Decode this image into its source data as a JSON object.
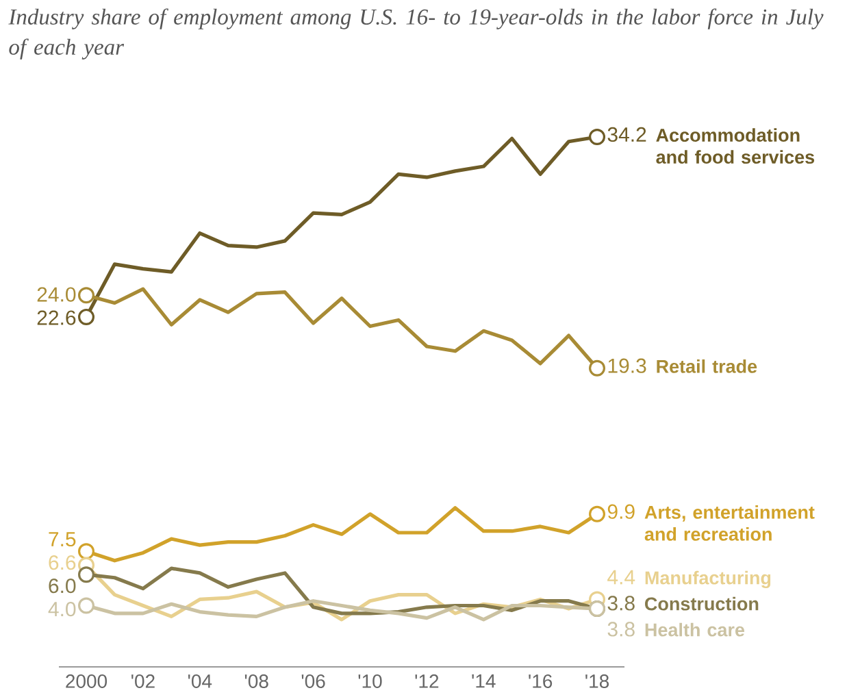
{
  "chart_data": {
    "type": "line",
    "title": "Industry share of employment among U.S. 16- to 19-year-olds in the labor force in July of each year",
    "categories": [
      "2000",
      null,
      "'02",
      null,
      "'04",
      null,
      "'08",
      null,
      "'06",
      null,
      "'10",
      null,
      "'12",
      null,
      "'14",
      null,
      "'16",
      null,
      "'18"
    ],
    "series": [
      {
        "name": "Accommodation and food services",
        "color": "#6e5c27",
        "values": [
          22.6,
          26.0,
          25.7,
          25.5,
          28.0,
          27.2,
          27.1,
          27.5,
          29.3,
          29.2,
          30.0,
          31.8,
          31.6,
          32.0,
          32.3,
          34.1,
          31.8,
          33.9,
          34.2
        ],
        "value_labels": [
          "22.6",
          null,
          null,
          null,
          null,
          null,
          null,
          null,
          null,
          null,
          null,
          null,
          null,
          null,
          null,
          null,
          null,
          null,
          "34.2"
        ]
      },
      {
        "name": "Retail trade",
        "color": "#a88b35",
        "values": [
          24.0,
          23.5,
          24.4,
          22.1,
          23.7,
          22.9,
          24.1,
          24.2,
          22.2,
          23.8,
          22.0,
          22.4,
          20.7,
          20.4,
          21.7,
          21.1,
          19.6,
          21.4,
          19.3
        ],
        "value_labels": [
          "24.0",
          null,
          null,
          null,
          null,
          null,
          null,
          null,
          null,
          null,
          null,
          null,
          null,
          null,
          null,
          null,
          null,
          null,
          "19.3"
        ]
      },
      {
        "name": "Arts, entertainment and recreation",
        "color": "#d1a22a",
        "values": [
          7.5,
          6.9,
          7.4,
          8.3,
          7.9,
          8.1,
          8.1,
          8.5,
          9.2,
          8.6,
          9.9,
          8.7,
          8.7,
          10.3,
          8.8,
          8.8,
          9.1,
          8.7,
          9.9
        ],
        "value_labels": [
          "7.5",
          null,
          null,
          null,
          null,
          null,
          null,
          null,
          null,
          null,
          null,
          null,
          null,
          null,
          null,
          null,
          null,
          null,
          "9.9"
        ]
      },
      {
        "name": "Manufacturing",
        "color": "#e8d08e",
        "values": [
          6.6,
          4.7,
          4.0,
          3.3,
          4.4,
          4.5,
          4.9,
          3.9,
          4.2,
          3.1,
          4.3,
          4.7,
          4.7,
          3.5,
          4.1,
          3.9,
          4.4,
          3.8,
          4.4
        ],
        "value_labels": [
          "6.6",
          null,
          null,
          null,
          null,
          null,
          null,
          null,
          null,
          null,
          null,
          null,
          null,
          null,
          null,
          null,
          null,
          null,
          "4.4"
        ]
      },
      {
        "name": "Construction",
        "color": "#857a4c",
        "values": [
          6.0,
          5.8,
          5.1,
          6.4,
          6.1,
          5.2,
          5.7,
          6.1,
          3.9,
          3.5,
          3.5,
          3.6,
          3.9,
          4.0,
          4.0,
          3.7,
          4.3,
          4.3,
          3.8
        ],
        "value_labels": [
          "6.0",
          null,
          null,
          null,
          null,
          null,
          null,
          null,
          null,
          null,
          null,
          null,
          null,
          null,
          null,
          null,
          null,
          null,
          "3.8"
        ]
      },
      {
        "name": "Health care",
        "color": "#cbc2a2",
        "values": [
          4.0,
          3.5,
          3.5,
          4.1,
          3.6,
          3.4,
          3.3,
          3.9,
          4.3,
          4.0,
          3.7,
          3.5,
          3.2,
          3.9,
          3.1,
          4.0,
          4.0,
          3.9,
          3.8
        ],
        "value_labels": [
          "4.0",
          null,
          null,
          null,
          null,
          null,
          null,
          null,
          null,
          null,
          null,
          null,
          null,
          null,
          null,
          null,
          null,
          null,
          "3.8"
        ]
      }
    ]
  }
}
